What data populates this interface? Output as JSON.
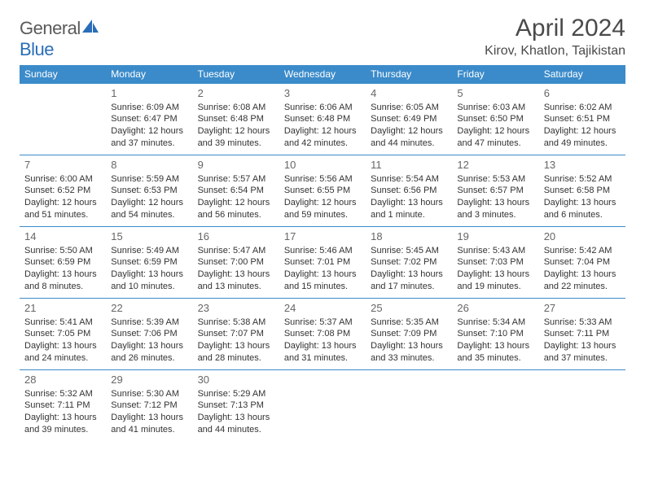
{
  "brand": {
    "part1": "General",
    "part2": "Blue"
  },
  "title": "April 2024",
  "location": "Kirov, Khatlon, Tajikistan",
  "header_bg": "#3b8bca",
  "rule_color": "#3b8bca",
  "weekdays": [
    "Sunday",
    "Monday",
    "Tuesday",
    "Wednesday",
    "Thursday",
    "Friday",
    "Saturday"
  ],
  "weeks": [
    [
      null,
      {
        "d": "1",
        "sr": "6:09 AM",
        "ss": "6:47 PM",
        "dl": "12 hours and 37 minutes."
      },
      {
        "d": "2",
        "sr": "6:08 AM",
        "ss": "6:48 PM",
        "dl": "12 hours and 39 minutes."
      },
      {
        "d": "3",
        "sr": "6:06 AM",
        "ss": "6:48 PM",
        "dl": "12 hours and 42 minutes."
      },
      {
        "d": "4",
        "sr": "6:05 AM",
        "ss": "6:49 PM",
        "dl": "12 hours and 44 minutes."
      },
      {
        "d": "5",
        "sr": "6:03 AM",
        "ss": "6:50 PM",
        "dl": "12 hours and 47 minutes."
      },
      {
        "d": "6",
        "sr": "6:02 AM",
        "ss": "6:51 PM",
        "dl": "12 hours and 49 minutes."
      }
    ],
    [
      {
        "d": "7",
        "sr": "6:00 AM",
        "ss": "6:52 PM",
        "dl": "12 hours and 51 minutes."
      },
      {
        "d": "8",
        "sr": "5:59 AM",
        "ss": "6:53 PM",
        "dl": "12 hours and 54 minutes."
      },
      {
        "d": "9",
        "sr": "5:57 AM",
        "ss": "6:54 PM",
        "dl": "12 hours and 56 minutes."
      },
      {
        "d": "10",
        "sr": "5:56 AM",
        "ss": "6:55 PM",
        "dl": "12 hours and 59 minutes."
      },
      {
        "d": "11",
        "sr": "5:54 AM",
        "ss": "6:56 PM",
        "dl": "13 hours and 1 minute."
      },
      {
        "d": "12",
        "sr": "5:53 AM",
        "ss": "6:57 PM",
        "dl": "13 hours and 3 minutes."
      },
      {
        "d": "13",
        "sr": "5:52 AM",
        "ss": "6:58 PM",
        "dl": "13 hours and 6 minutes."
      }
    ],
    [
      {
        "d": "14",
        "sr": "5:50 AM",
        "ss": "6:59 PM",
        "dl": "13 hours and 8 minutes."
      },
      {
        "d": "15",
        "sr": "5:49 AM",
        "ss": "6:59 PM",
        "dl": "13 hours and 10 minutes."
      },
      {
        "d": "16",
        "sr": "5:47 AM",
        "ss": "7:00 PM",
        "dl": "13 hours and 13 minutes."
      },
      {
        "d": "17",
        "sr": "5:46 AM",
        "ss": "7:01 PM",
        "dl": "13 hours and 15 minutes."
      },
      {
        "d": "18",
        "sr": "5:45 AM",
        "ss": "7:02 PM",
        "dl": "13 hours and 17 minutes."
      },
      {
        "d": "19",
        "sr": "5:43 AM",
        "ss": "7:03 PM",
        "dl": "13 hours and 19 minutes."
      },
      {
        "d": "20",
        "sr": "5:42 AM",
        "ss": "7:04 PM",
        "dl": "13 hours and 22 minutes."
      }
    ],
    [
      {
        "d": "21",
        "sr": "5:41 AM",
        "ss": "7:05 PM",
        "dl": "13 hours and 24 minutes."
      },
      {
        "d": "22",
        "sr": "5:39 AM",
        "ss": "7:06 PM",
        "dl": "13 hours and 26 minutes."
      },
      {
        "d": "23",
        "sr": "5:38 AM",
        "ss": "7:07 PM",
        "dl": "13 hours and 28 minutes."
      },
      {
        "d": "24",
        "sr": "5:37 AM",
        "ss": "7:08 PM",
        "dl": "13 hours and 31 minutes."
      },
      {
        "d": "25",
        "sr": "5:35 AM",
        "ss": "7:09 PM",
        "dl": "13 hours and 33 minutes."
      },
      {
        "d": "26",
        "sr": "5:34 AM",
        "ss": "7:10 PM",
        "dl": "13 hours and 35 minutes."
      },
      {
        "d": "27",
        "sr": "5:33 AM",
        "ss": "7:11 PM",
        "dl": "13 hours and 37 minutes."
      }
    ],
    [
      {
        "d": "28",
        "sr": "5:32 AM",
        "ss": "7:11 PM",
        "dl": "13 hours and 39 minutes."
      },
      {
        "d": "29",
        "sr": "5:30 AM",
        "ss": "7:12 PM",
        "dl": "13 hours and 41 minutes."
      },
      {
        "d": "30",
        "sr": "5:29 AM",
        "ss": "7:13 PM",
        "dl": "13 hours and 44 minutes."
      },
      null,
      null,
      null,
      null
    ]
  ],
  "labels": {
    "sunrise": "Sunrise: ",
    "sunset": "Sunset: ",
    "daylight": "Daylight: "
  }
}
